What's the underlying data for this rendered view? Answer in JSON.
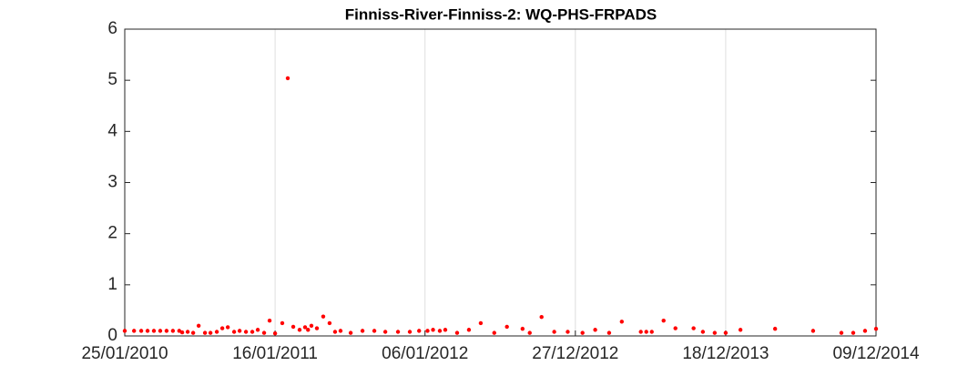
{
  "chart_data": {
    "type": "scatter",
    "title": "Finniss-River-Finniss-2: WQ-PHS-FRPADS",
    "x": [
      "25/01/2010",
      "16/02/2010",
      "05/03/2010",
      "20/03/2010",
      "04/04/2010",
      "19/04/2010",
      "04/05/2010",
      "19/05/2010",
      "03/06/2010",
      "10/06/2010",
      "23/06/2010",
      "06/07/2010",
      "19/07/2010",
      "03/08/2010",
      "16/08/2010",
      "31/08/2010",
      "13/09/2010",
      "26/09/2010",
      "11/10/2010",
      "24/10/2010",
      "08/11/2010",
      "23/11/2010",
      "06/12/2010",
      "21/12/2010",
      "03/01/2011",
      "16/01/2011",
      "02/02/2011",
      "15/02/2011",
      "28/02/2011",
      "15/03/2011",
      "28/03/2011",
      "04/04/2011",
      "12/04/2011",
      "25/04/2011",
      "10/05/2011",
      "25/05/2011",
      "07/06/2011",
      "20/06/2011",
      "14/07/2011",
      "11/08/2011",
      "08/09/2011",
      "04/10/2011",
      "03/11/2011",
      "01/12/2011",
      "23/12/2011",
      "12/01/2012",
      "25/01/2012",
      "10/02/2012",
      "23/02/2012",
      "22/03/2012",
      "19/04/2012",
      "17/05/2012",
      "18/06/2012",
      "18/07/2012",
      "24/08/2012",
      "10/09/2012",
      "08/10/2012",
      "07/11/2012",
      "09/12/2012",
      "13/01/2013",
      "12/02/2013",
      "17/03/2013",
      "16/04/2013",
      "31/05/2013",
      "13/06/2013",
      "26/06/2013",
      "24/07/2013",
      "21/08/2013",
      "03/10/2013",
      "25/10/2013",
      "22/11/2013",
      "18/12/2013",
      "22/01/2014",
      "14/04/2014",
      "13/07/2014",
      "18/09/2014",
      "16/10/2014",
      "13/11/2014",
      "09/12/2014"
    ],
    "values": [
      0.1,
      0.1,
      0.1,
      0.1,
      0.1,
      0.1,
      0.1,
      0.1,
      0.1,
      0.07,
      0.08,
      0.06,
      0.2,
      0.06,
      0.06,
      0.08,
      0.15,
      0.17,
      0.08,
      0.1,
      0.08,
      0.08,
      0.12,
      0.06,
      0.3,
      0.05,
      0.25,
      5.04,
      0.18,
      0.12,
      0.17,
      0.12,
      0.2,
      0.15,
      0.38,
      0.25,
      0.08,
      0.1,
      0.06,
      0.1,
      0.1,
      0.08,
      0.08,
      0.08,
      0.1,
      0.1,
      0.12,
      0.1,
      0.12,
      0.06,
      0.12,
      0.25,
      0.06,
      0.18,
      0.14,
      0.06,
      0.37,
      0.08,
      0.08,
      0.06,
      0.12,
      0.06,
      0.28,
      0.08,
      0.08,
      0.08,
      0.3,
      0.15,
      0.15,
      0.08,
      0.06,
      0.06,
      0.12,
      0.14,
      0.1,
      0.06,
      0.06,
      0.1,
      0.14
    ],
    "color": "#ff0000",
    "xlim": [
      "25/01/2010",
      "09/12/2014"
    ],
    "xticks": [
      "25/01/2010",
      "16/01/2011",
      "06/01/2012",
      "27/12/2012",
      "18/12/2013",
      "09/12/2014"
    ],
    "ylim": [
      0,
      6
    ],
    "yticks": [
      0,
      1,
      2,
      3,
      4,
      5,
      6
    ],
    "grid": true
  }
}
